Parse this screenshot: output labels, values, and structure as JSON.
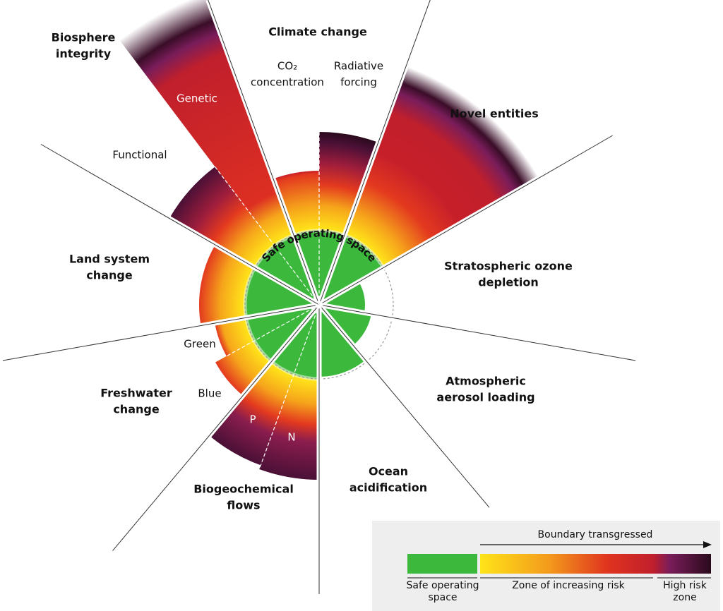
{
  "boundaries": [
    {
      "label": [
        "Climate change"
      ]
    },
    {
      "label": [
        "Novel entities"
      ]
    },
    {
      "label": [
        "Stratospheric ozone",
        "depletion"
      ]
    },
    {
      "label": [
        "Atmospheric",
        "aerosol loading"
      ]
    },
    {
      "label": [
        "Ocean",
        "acidification"
      ]
    },
    {
      "label": [
        "Biogeochemical",
        "flows"
      ]
    },
    {
      "label": [
        "Freshwater",
        "change"
      ]
    },
    {
      "label": [
        "Land system",
        "change"
      ]
    },
    {
      "label": [
        "Biosphere",
        "integrity"
      ]
    }
  ],
  "sub_labels": [
    [
      "CO₂",
      "concentration"
    ],
    [
      "Radiative",
      "forcing"
    ],
    [
      "Genetic"
    ],
    [
      "Functional"
    ],
    [
      "Green"
    ],
    [
      "Blue"
    ],
    [
      "P"
    ],
    [
      "N"
    ]
  ],
  "center_label": "Safe operating space",
  "legend": {
    "arrow_label": "Boundary transgressed",
    "safe": [
      "Safe operating",
      "space"
    ],
    "risk": "Zone of increasing risk",
    "high": [
      "High risk",
      "zone"
    ]
  }
}
